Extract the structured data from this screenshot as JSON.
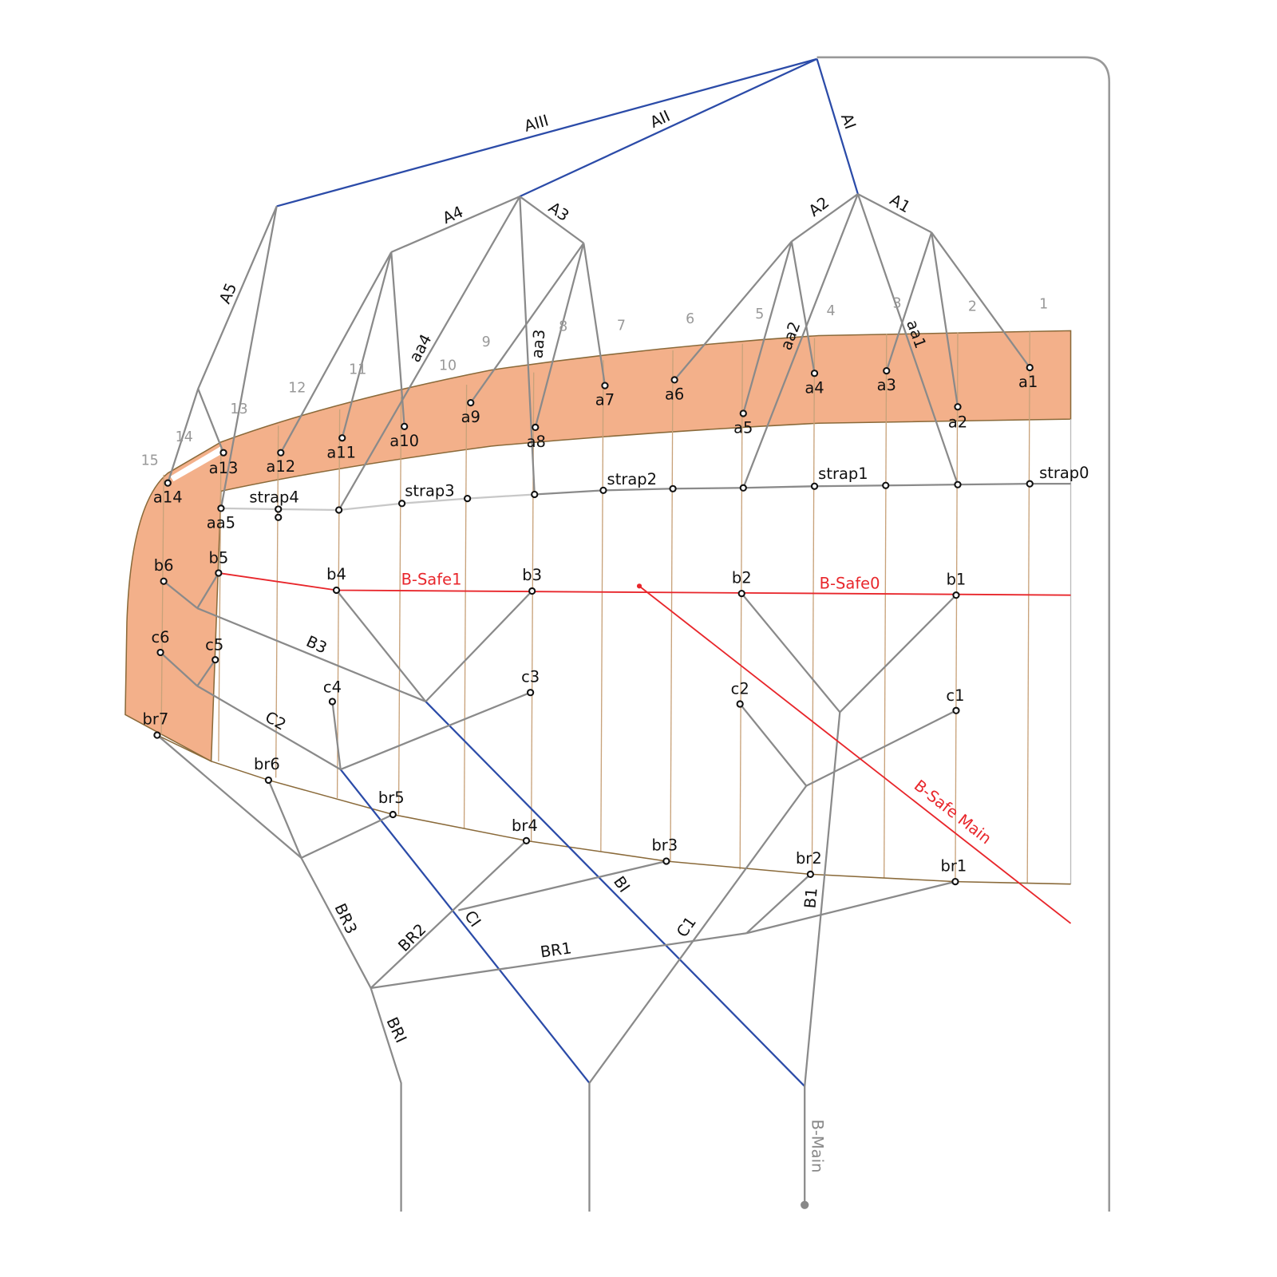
{
  "colors": {
    "band": "#f3b08a",
    "band_edge": "#8a6a3a",
    "gray_line": "#8a8a8a",
    "blue_line": "#2b4ba8",
    "red_line": "#e8262b",
    "guide": "#c8a27a",
    "strap_light": "#c8c8c8"
  },
  "column_numbers": [
    "1",
    "2",
    "3",
    "4",
    "5",
    "6",
    "7",
    "8",
    "9",
    "10",
    "11",
    "12",
    "13",
    "14",
    "15"
  ],
  "nodes": {
    "a1": "a1",
    "a2": "a2",
    "a3": "a3",
    "a4": "a4",
    "a5": "a5",
    "a6": "a6",
    "a7": "a7",
    "a8": "a8",
    "a9": "a9",
    "a10": "a10",
    "a11": "a11",
    "a12": "a12",
    "a13": "a13",
    "a14": "a14",
    "aa5": "aa5",
    "strap0": "strap0",
    "strap1": "strap1",
    "strap2": "strap2",
    "strap3": "strap3",
    "strap4": "strap4",
    "b1": "b1",
    "b2": "b2",
    "b3": "b3",
    "b4": "b4",
    "b5": "b5",
    "b6": "b6",
    "c1": "c1",
    "c2": "c2",
    "c3": "c3",
    "c4": "c4",
    "c5": "c5",
    "c6": "c6",
    "br1": "br1",
    "br2": "br2",
    "br3": "br3",
    "br4": "br4",
    "br5": "br5",
    "br6": "br6",
    "br7": "br7"
  },
  "edges": {
    "AIII": "AIII",
    "AII": "AII",
    "AI": "AI",
    "A5": "A5",
    "A4": "A4",
    "A3": "A3",
    "A2": "A2",
    "A1": "A1",
    "aa4": "aa4",
    "aa3": "aa3",
    "aa2": "aa2",
    "aa1": "aa1",
    "B3": "B3",
    "C2": "C2",
    "BI": "BI",
    "CI": "CI",
    "C1": "C1",
    "B1": "B1",
    "BR3": "BR3",
    "BR2": "BR2",
    "BR1": "BR1",
    "BRI": "BRI"
  },
  "safety": {
    "b_safe1": "B-Safe1",
    "b_safe0": "B-Safe0",
    "b_safe_main": "B-Safe Main",
    "b_main": "B-Main"
  }
}
